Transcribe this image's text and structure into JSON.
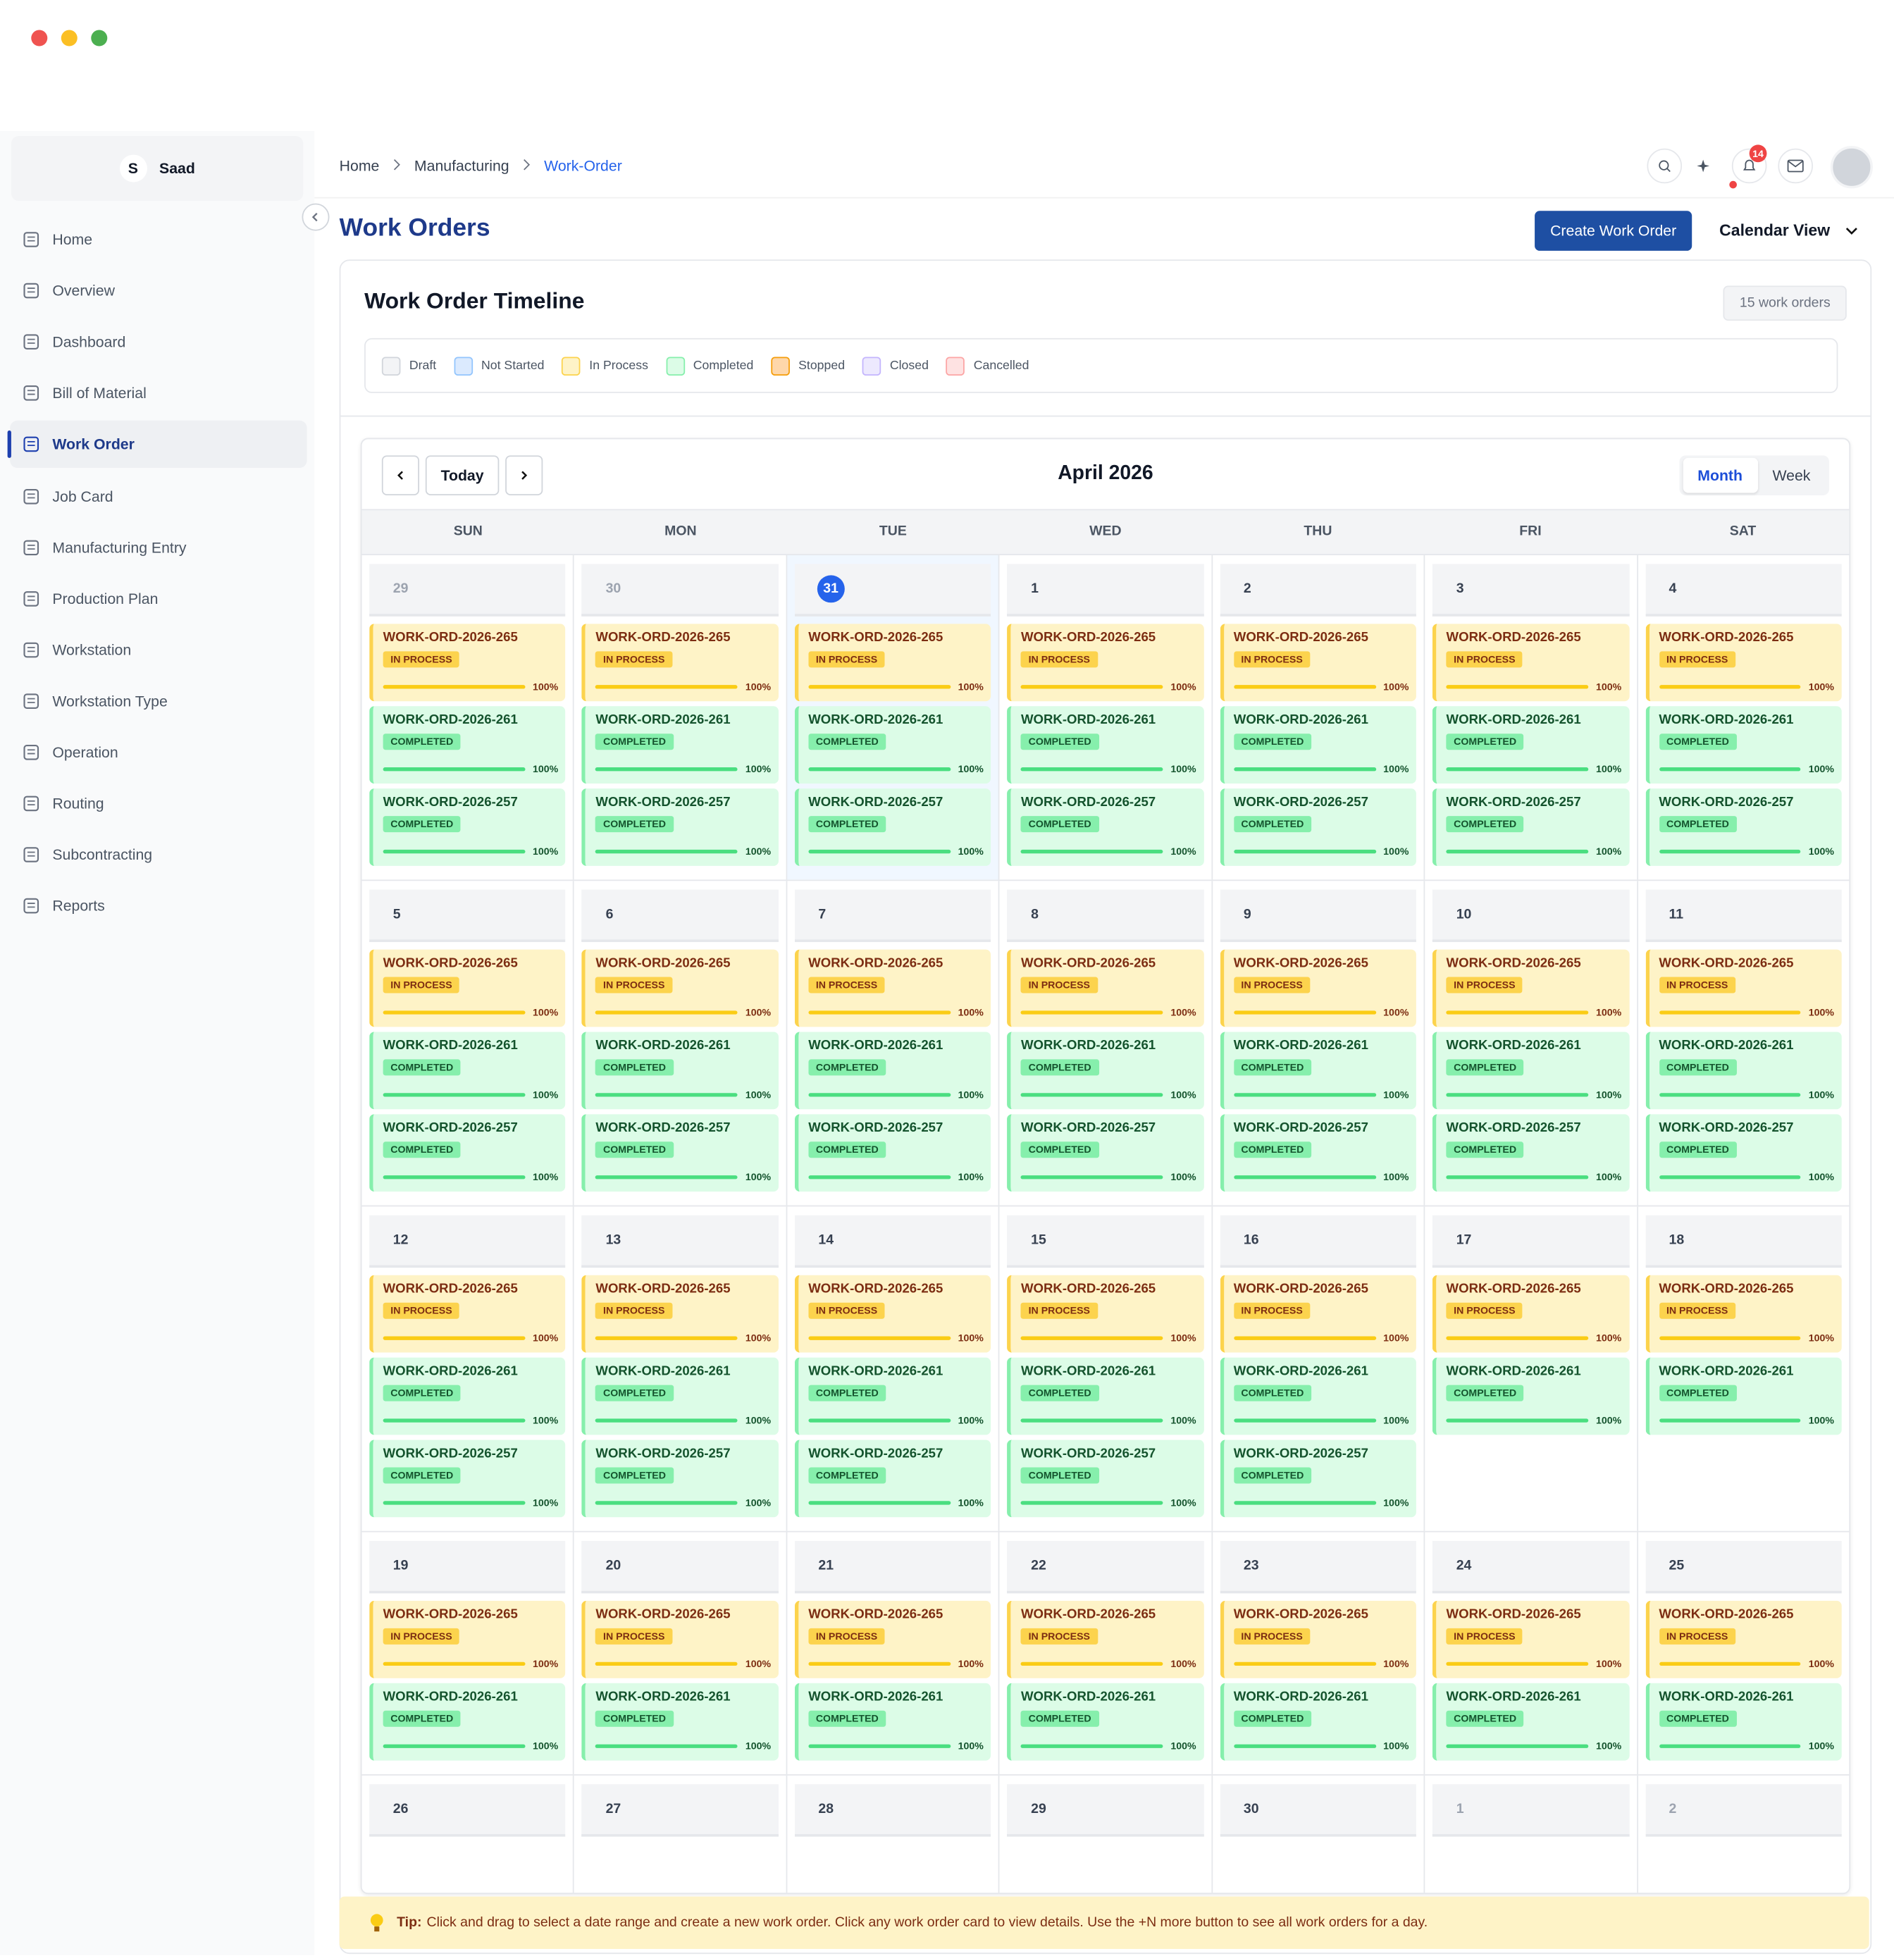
{
  "sidebar": {
    "user": {
      "initial": "S",
      "name": "Saad"
    },
    "items": [
      "Home",
      "Overview",
      "Dashboard",
      "Bill of Material",
      "Work Order",
      "Job Card",
      "Manufacturing Entry",
      "Production Plan",
      "Workstation",
      "Workstation Type",
      "Operation",
      "Routing",
      "Subcontracting",
      "Reports"
    ],
    "active": 4
  },
  "breadcrumb": [
    "Home",
    "Manufacturing",
    "Work-Order"
  ],
  "notification_count": 14,
  "header": {
    "title": "Work Orders",
    "create_button": "Create Work Order",
    "view_select": "Calendar View"
  },
  "timeline": {
    "title": "Work Order Timeline",
    "count": "15 work orders",
    "legend": [
      {
        "label": "Draft",
        "color": "#f3f4f6",
        "border": "#d1d5db"
      },
      {
        "label": "Not Started",
        "color": "#dbeafe",
        "border": "#93c5fd"
      },
      {
        "label": "In Process",
        "color": "#fef3c7",
        "border": "#fcd34d",
        "badge": "#fcd34d",
        "text": "#7c2d12",
        "bar": "#facc15"
      },
      {
        "label": "Completed",
        "color": "#dcfce7",
        "border": "#86efac",
        "badge": "#86efac",
        "text": "#14532d",
        "bar": "#4ade80"
      },
      {
        "label": "Stopped",
        "color": "#fed7aa",
        "border": "#f59e0b"
      },
      {
        "label": "Closed",
        "color": "#ede9fe",
        "border": "#c4b5fd"
      },
      {
        "label": "Cancelled",
        "color": "#fee2e2",
        "border": "#fca5a5"
      }
    ]
  },
  "calendar": {
    "today_button": "Today",
    "month": "April 2026",
    "views": [
      "Month",
      "Week"
    ],
    "active_view": 0,
    "weekdays": [
      "SUN",
      "MON",
      "TUE",
      "WED",
      "THU",
      "FRI",
      "SAT"
    ],
    "weeks": [
      {
        "days": [
          {
            "day": "29",
            "muted": true,
            "cards": [
              {
                "id": "WORK-ORD-2026-265",
                "status": "In Process",
                "progress": "100%"
              },
              {
                "id": "WORK-ORD-2026-261",
                "status": "Completed",
                "progress": "100%"
              },
              {
                "id": "WORK-ORD-2026-257",
                "status": "Completed",
                "progress": "100%"
              }
            ]
          },
          {
            "day": "30",
            "muted": true,
            "cards": [
              {
                "id": "WORK-ORD-2026-265",
                "status": "In Process",
                "progress": "100%"
              },
              {
                "id": "WORK-ORD-2026-261",
                "status": "Completed",
                "progress": "100%"
              },
              {
                "id": "WORK-ORD-2026-257",
                "status": "Completed",
                "progress": "100%"
              }
            ]
          },
          {
            "day": "31",
            "today": true,
            "cards": [
              {
                "id": "WORK-ORD-2026-265",
                "status": "In Process",
                "progress": "100%"
              },
              {
                "id": "WORK-ORD-2026-261",
                "status": "Completed",
                "progress": "100%"
              },
              {
                "id": "WORK-ORD-2026-257",
                "status": "Completed",
                "progress": "100%"
              }
            ]
          },
          {
            "day": "1",
            "cards": [
              {
                "id": "WORK-ORD-2026-265",
                "status": "In Process",
                "progress": "100%"
              },
              {
                "id": "WORK-ORD-2026-261",
                "status": "Completed",
                "progress": "100%"
              },
              {
                "id": "WORK-ORD-2026-257",
                "status": "Completed",
                "progress": "100%"
              }
            ]
          },
          {
            "day": "2",
            "cards": [
              {
                "id": "WORK-ORD-2026-265",
                "status": "In Process",
                "progress": "100%"
              },
              {
                "id": "WORK-ORD-2026-261",
                "status": "Completed",
                "progress": "100%"
              },
              {
                "id": "WORK-ORD-2026-257",
                "status": "Completed",
                "progress": "100%"
              }
            ]
          },
          {
            "day": "3",
            "cards": [
              {
                "id": "WORK-ORD-2026-265",
                "status": "In Process",
                "progress": "100%"
              },
              {
                "id": "WORK-ORD-2026-261",
                "status": "Completed",
                "progress": "100%"
              },
              {
                "id": "WORK-ORD-2026-257",
                "status": "Completed",
                "progress": "100%"
              }
            ]
          },
          {
            "day": "4",
            "cards": [
              {
                "id": "WORK-ORD-2026-265",
                "status": "In Process",
                "progress": "100%"
              },
              {
                "id": "WORK-ORD-2026-261",
                "status": "Completed",
                "progress": "100%"
              },
              {
                "id": "WORK-ORD-2026-257",
                "status": "Completed",
                "progress": "100%"
              }
            ]
          }
        ]
      },
      {
        "days": [
          {
            "day": "5",
            "cards": [
              {
                "id": "WORK-ORD-2026-265",
                "status": "In Process",
                "progress": "100%"
              },
              {
                "id": "WORK-ORD-2026-261",
                "status": "Completed",
                "progress": "100%"
              },
              {
                "id": "WORK-ORD-2026-257",
                "status": "Completed",
                "progress": "100%"
              }
            ]
          },
          {
            "day": "6",
            "cards": [
              {
                "id": "WORK-ORD-2026-265",
                "status": "In Process",
                "progress": "100%"
              },
              {
                "id": "WORK-ORD-2026-261",
                "status": "Completed",
                "progress": "100%"
              },
              {
                "id": "WORK-ORD-2026-257",
                "status": "Completed",
                "progress": "100%"
              }
            ]
          },
          {
            "day": "7",
            "cards": [
              {
                "id": "WORK-ORD-2026-265",
                "status": "In Process",
                "progress": "100%"
              },
              {
                "id": "WORK-ORD-2026-261",
                "status": "Completed",
                "progress": "100%"
              },
              {
                "id": "WORK-ORD-2026-257",
                "status": "Completed",
                "progress": "100%"
              }
            ]
          },
          {
            "day": "8",
            "cards": [
              {
                "id": "WORK-ORD-2026-265",
                "status": "In Process",
                "progress": "100%"
              },
              {
                "id": "WORK-ORD-2026-261",
                "status": "Completed",
                "progress": "100%"
              },
              {
                "id": "WORK-ORD-2026-257",
                "status": "Completed",
                "progress": "100%"
              }
            ]
          },
          {
            "day": "9",
            "cards": [
              {
                "id": "WORK-ORD-2026-265",
                "status": "In Process",
                "progress": "100%"
              },
              {
                "id": "WORK-ORD-2026-261",
                "status": "Completed",
                "progress": "100%"
              },
              {
                "id": "WORK-ORD-2026-257",
                "status": "Completed",
                "progress": "100%"
              }
            ]
          },
          {
            "day": "10",
            "cards": [
              {
                "id": "WORK-ORD-2026-265",
                "status": "In Process",
                "progress": "100%"
              },
              {
                "id": "WORK-ORD-2026-261",
                "status": "Completed",
                "progress": "100%"
              },
              {
                "id": "WORK-ORD-2026-257",
                "status": "Completed",
                "progress": "100%"
              }
            ]
          },
          {
            "day": "11",
            "cards": [
              {
                "id": "WORK-ORD-2026-265",
                "status": "In Process",
                "progress": "100%"
              },
              {
                "id": "WORK-ORD-2026-261",
                "status": "Completed",
                "progress": "100%"
              },
              {
                "id": "WORK-ORD-2026-257",
                "status": "Completed",
                "progress": "100%"
              }
            ]
          }
        ]
      },
      {
        "days": [
          {
            "day": "12",
            "cards": [
              {
                "id": "WORK-ORD-2026-265",
                "status": "In Process",
                "progress": "100%"
              },
              {
                "id": "WORK-ORD-2026-261",
                "status": "Completed",
                "progress": "100%"
              },
              {
                "id": "WORK-ORD-2026-257",
                "status": "Completed",
                "progress": "100%"
              }
            ]
          },
          {
            "day": "13",
            "cards": [
              {
                "id": "WORK-ORD-2026-265",
                "status": "In Process",
                "progress": "100%"
              },
              {
                "id": "WORK-ORD-2026-261",
                "status": "Completed",
                "progress": "100%"
              },
              {
                "id": "WORK-ORD-2026-257",
                "status": "Completed",
                "progress": "100%"
              }
            ]
          },
          {
            "day": "14",
            "cards": [
              {
                "id": "WORK-ORD-2026-265",
                "status": "In Process",
                "progress": "100%"
              },
              {
                "id": "WORK-ORD-2026-261",
                "status": "Completed",
                "progress": "100%"
              },
              {
                "id": "WORK-ORD-2026-257",
                "status": "Completed",
                "progress": "100%"
              }
            ]
          },
          {
            "day": "15",
            "cards": [
              {
                "id": "WORK-ORD-2026-265",
                "status": "In Process",
                "progress": "100%"
              },
              {
                "id": "WORK-ORD-2026-261",
                "status": "Completed",
                "progress": "100%"
              },
              {
                "id": "WORK-ORD-2026-257",
                "status": "Completed",
                "progress": "100%"
              }
            ]
          },
          {
            "day": "16",
            "cards": [
              {
                "id": "WORK-ORD-2026-265",
                "status": "In Process",
                "progress": "100%"
              },
              {
                "id": "WORK-ORD-2026-261",
                "status": "Completed",
                "progress": "100%"
              },
              {
                "id": "WORK-ORD-2026-257",
                "status": "Completed",
                "progress": "100%"
              }
            ]
          },
          {
            "day": "17",
            "cards": [
              {
                "id": "WORK-ORD-2026-265",
                "status": "In Process",
                "progress": "100%"
              },
              {
                "id": "WORK-ORD-2026-261",
                "status": "Completed",
                "progress": "100%"
              }
            ]
          },
          {
            "day": "18",
            "cards": [
              {
                "id": "WORK-ORD-2026-265",
                "status": "In Process",
                "progress": "100%"
              },
              {
                "id": "WORK-ORD-2026-261",
                "status": "Completed",
                "progress": "100%"
              }
            ]
          }
        ]
      },
      {
        "days": [
          {
            "day": "19",
            "cards": [
              {
                "id": "WORK-ORD-2026-265",
                "status": "In Process",
                "progress": "100%"
              },
              {
                "id": "WORK-ORD-2026-261",
                "status": "Completed",
                "progress": "100%"
              }
            ]
          },
          {
            "day": "20",
            "cards": [
              {
                "id": "WORK-ORD-2026-265",
                "status": "In Process",
                "progress": "100%"
              },
              {
                "id": "WORK-ORD-2026-261",
                "status": "Completed",
                "progress": "100%"
              }
            ]
          },
          {
            "day": "21",
            "cards": [
              {
                "id": "WORK-ORD-2026-265",
                "status": "In Process",
                "progress": "100%"
              },
              {
                "id": "WORK-ORD-2026-261",
                "status": "Completed",
                "progress": "100%"
              }
            ]
          },
          {
            "day": "22",
            "cards": [
              {
                "id": "WORK-ORD-2026-265",
                "status": "In Process",
                "progress": "100%"
              },
              {
                "id": "WORK-ORD-2026-261",
                "status": "Completed",
                "progress": "100%"
              }
            ]
          },
          {
            "day": "23",
            "cards": [
              {
                "id": "WORK-ORD-2026-265",
                "status": "In Process",
                "progress": "100%"
              },
              {
                "id": "WORK-ORD-2026-261",
                "status": "Completed",
                "progress": "100%"
              }
            ]
          },
          {
            "day": "24",
            "cards": [
              {
                "id": "WORK-ORD-2026-265",
                "status": "In Process",
                "progress": "100%"
              },
              {
                "id": "WORK-ORD-2026-261",
                "status": "Completed",
                "progress": "100%"
              }
            ]
          },
          {
            "day": "25",
            "cards": [
              {
                "id": "WORK-ORD-2026-265",
                "status": "In Process",
                "progress": "100%"
              },
              {
                "id": "WORK-ORD-2026-261",
                "status": "Completed",
                "progress": "100%"
              }
            ]
          }
        ]
      },
      {
        "days": [
          {
            "day": "26",
            "cards": []
          },
          {
            "day": "27",
            "cards": []
          },
          {
            "day": "28",
            "cards": []
          },
          {
            "day": "29",
            "cards": []
          },
          {
            "day": "30",
            "cards": []
          },
          {
            "day": "1",
            "muted": true,
            "cards": []
          },
          {
            "day": "2",
            "muted": true,
            "cards": []
          }
        ]
      }
    ]
  },
  "tip": {
    "label": "Tip:",
    "text": "Click and drag to select a date range and create a new work order. Click any work order card to view details. Use the +N more button to see all work orders for a day."
  }
}
